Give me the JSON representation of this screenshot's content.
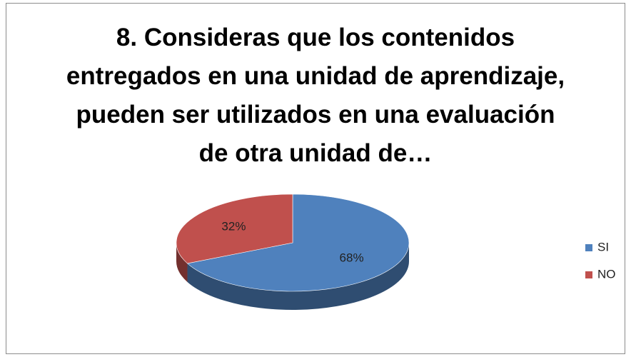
{
  "chart_data": {
    "type": "pie",
    "title": "8. Consideras que los contenidos entregados en una unidad de aprendizaje, pueden ser utilizados en una evaluación de otra unidad de…",
    "categories": [
      "SI",
      "NO"
    ],
    "values": [
      68,
      32
    ],
    "value_labels": [
      "68%",
      "32%"
    ],
    "colors": [
      "#4f81bd",
      "#c0504d"
    ],
    "legend": "right"
  }
}
